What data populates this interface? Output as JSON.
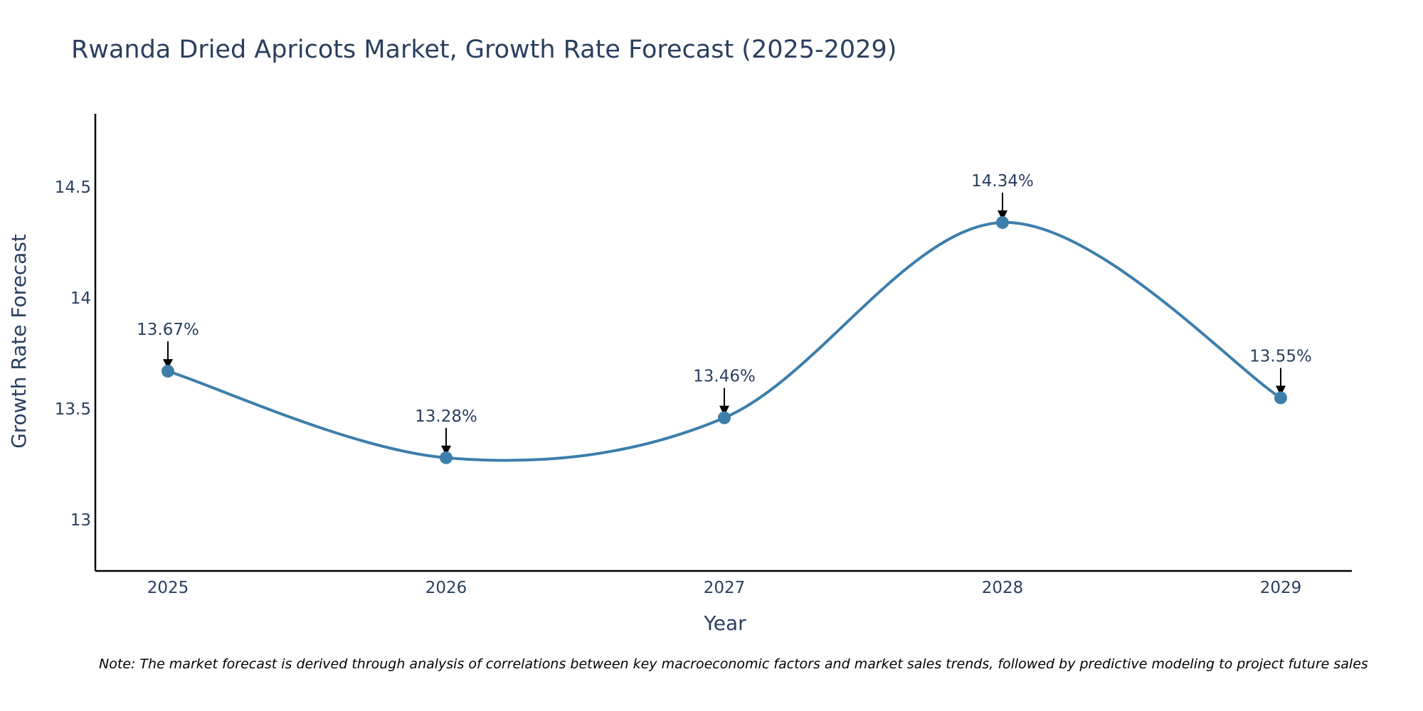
{
  "chart_data": {
    "type": "line",
    "title": "Rwanda Dried Apricots Market, Growth Rate Forecast (2025-2029)",
    "xlabel": "Year",
    "ylabel": "Growth Rate Forecast",
    "categories": [
      "2025",
      "2026",
      "2027",
      "2028",
      "2029"
    ],
    "values": [
      13.67,
      13.28,
      13.46,
      14.34,
      13.55
    ],
    "data_labels": [
      "13.67%",
      "13.28%",
      "13.46%",
      "14.34%",
      "13.55%"
    ],
    "y_ticks": [
      13,
      13.5,
      14,
      14.5
    ],
    "y_tick_labels": [
      "13",
      "13.5",
      "14",
      "14.5"
    ],
    "ylim": [
      12.77,
      14.83
    ],
    "grid": false,
    "legend": "none",
    "line_shape": "spline",
    "colors": {
      "line": "#3d7eab",
      "marker": "#3d7eab",
      "text": "#2a3f5f",
      "axis": "#000000",
      "arrow": "#000000"
    }
  },
  "note": "Note: The market forecast is derived through analysis of correlations between key macroeconomic factors and market sales trends, followed by predictive modeling to project future sales"
}
